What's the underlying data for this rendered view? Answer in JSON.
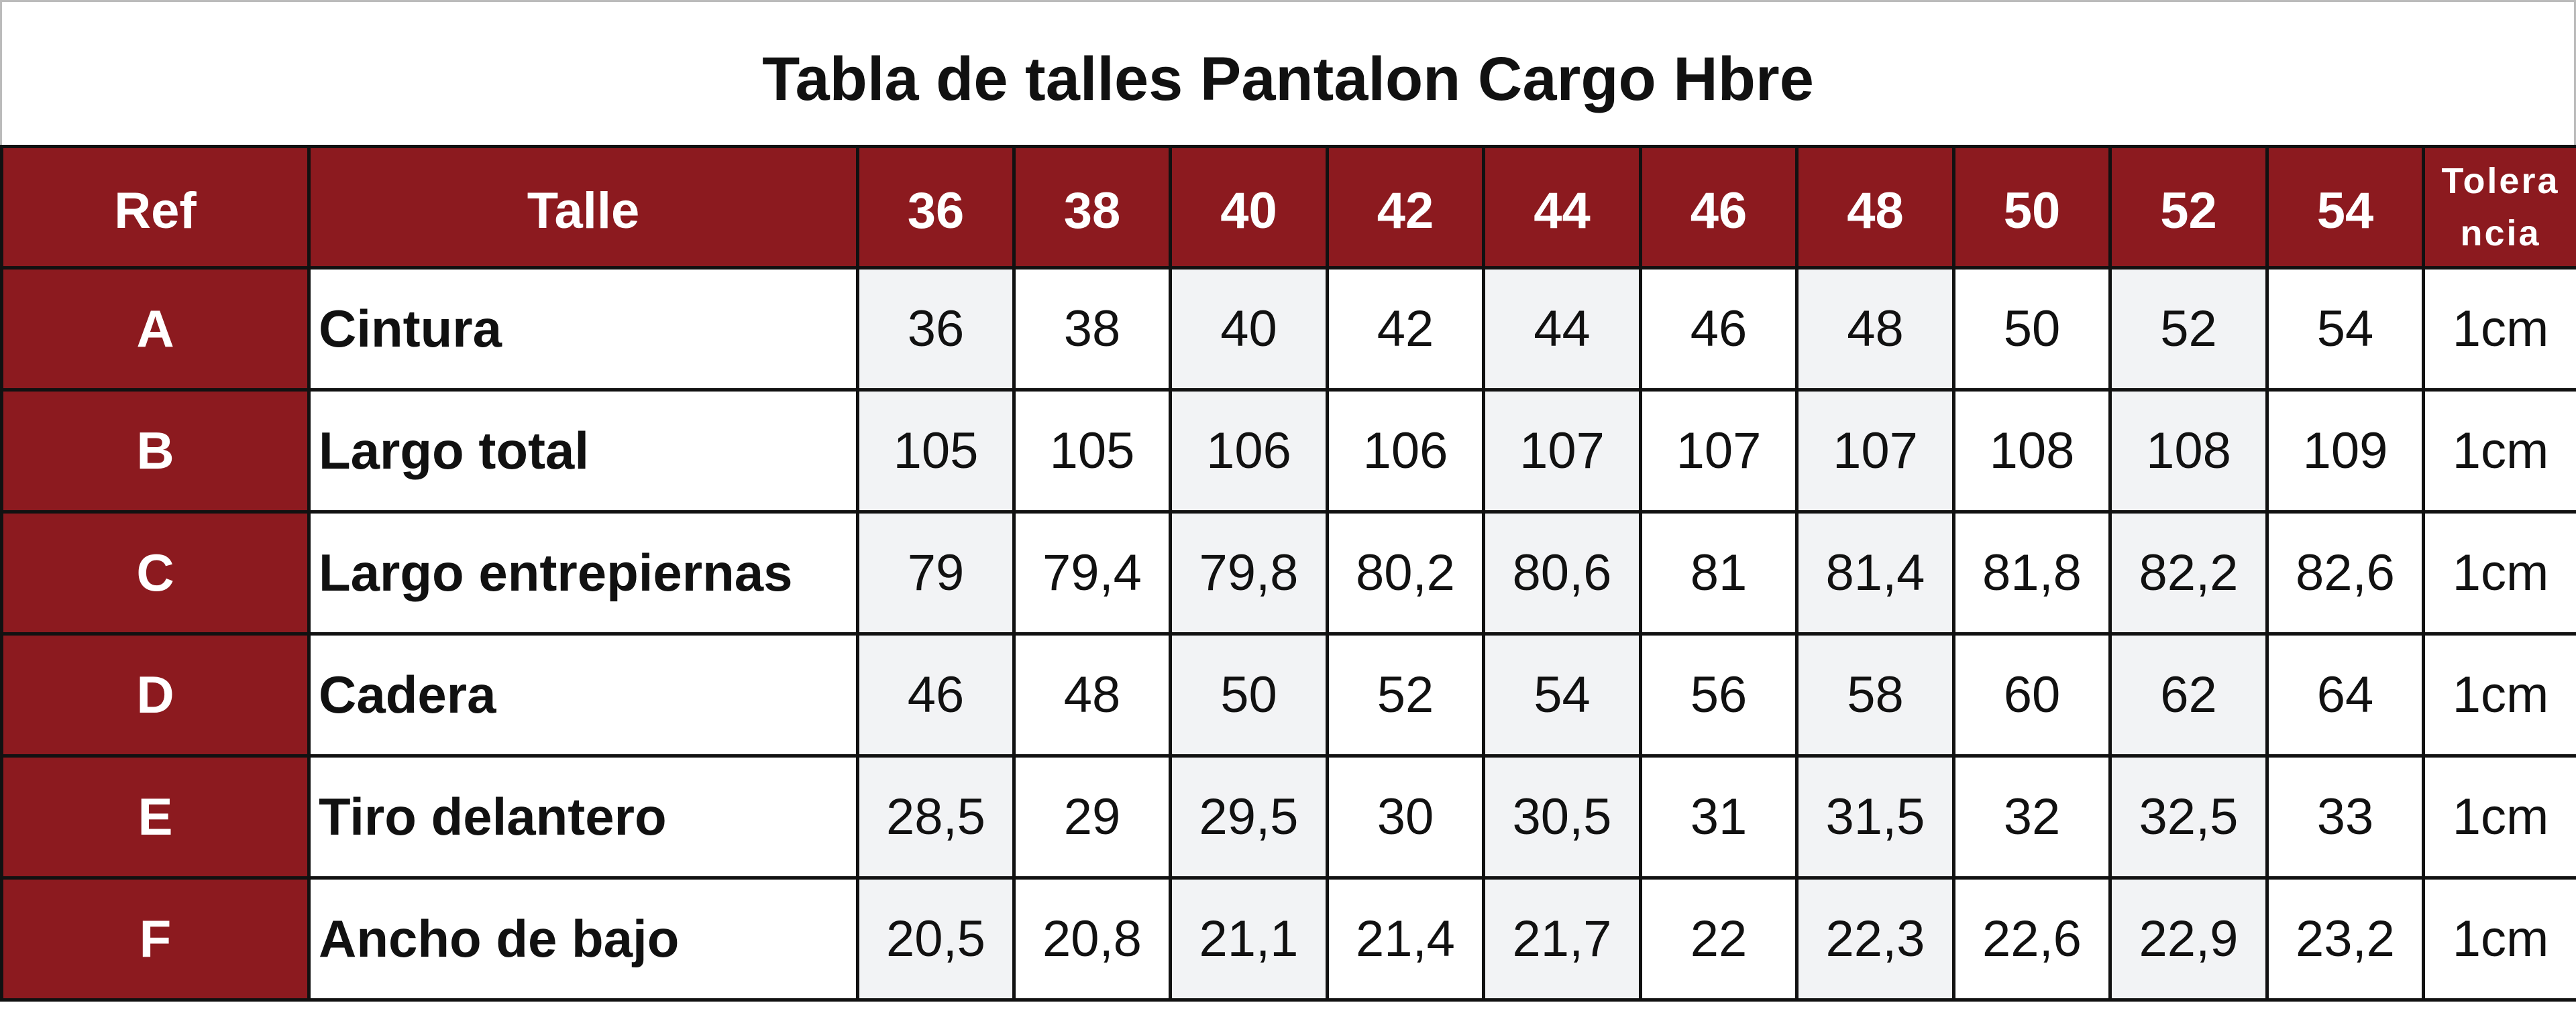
{
  "title": "Tabla de talles Pantalon Cargo Hbre",
  "table": {
    "header": [
      "Ref",
      "Talle",
      "36",
      "38",
      "40",
      "42",
      "44",
      "46",
      "48",
      "50",
      "52",
      "54",
      "Tolerancia"
    ],
    "rows": [
      [
        "A",
        "Cintura",
        "36",
        "38",
        "40",
        "42",
        "44",
        "46",
        "48",
        "50",
        "52",
        "54",
        "1cm"
      ],
      [
        "B",
        "Largo total",
        "105",
        "105",
        "106",
        "106",
        "107",
        "107",
        "107",
        "108",
        "108",
        "109",
        "1cm"
      ],
      [
        "C",
        "Largo entrepiernas",
        "79",
        "79,4",
        "79,8",
        "80,2",
        "80,6",
        "81",
        "81,4",
        "81,8",
        "82,2",
        "82,6",
        "1cm"
      ],
      [
        "D",
        "Cadera",
        "46",
        "48",
        "50",
        "52",
        "54",
        "56",
        "58",
        "60",
        "62",
        "64",
        "1cm"
      ],
      [
        "E",
        "Tiro delantero",
        "28,5",
        "29",
        "29,5",
        "30",
        "30,5",
        "31",
        "31,5",
        "32",
        "32,5",
        "33",
        "1cm"
      ],
      [
        "F",
        "Ancho de bajo",
        "20,5",
        "20,8",
        "21,1",
        "21,4",
        "21,7",
        "22",
        "22,3",
        "22,6",
        "22,9",
        "23,2",
        "1cm"
      ]
    ]
  }
}
